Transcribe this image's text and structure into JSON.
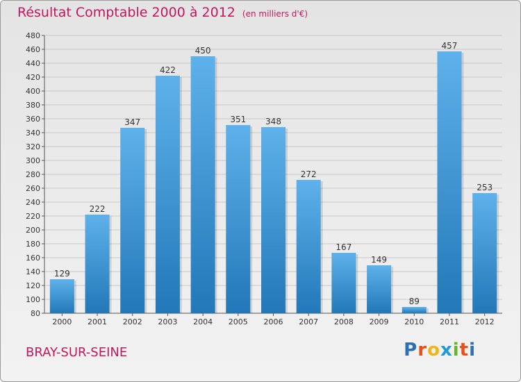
{
  "header": {
    "title": "Résultat Comptable 2000 à 2012",
    "unit": "(en milliers d'€)"
  },
  "footer": {
    "commune": "BRAY-SUR-SEINE",
    "brand": "Proxiti"
  },
  "colors": {
    "title": "#c2185b",
    "bar_top": "#5eb1ea",
    "bar_bottom": "#2278b8",
    "grid": "#c8c8c8"
  },
  "chart_data": {
    "type": "bar",
    "title": "Résultat Comptable 2000 à 2012",
    "subtitle": "(en milliers d'€)",
    "xlabel": "",
    "ylabel": "",
    "categories": [
      "2000",
      "2001",
      "2002",
      "2003",
      "2004",
      "2005",
      "2006",
      "2007",
      "2008",
      "2009",
      "2010",
      "2011",
      "2012"
    ],
    "values": [
      129,
      222,
      347,
      422,
      450,
      351,
      348,
      272,
      167,
      149,
      89,
      457,
      253
    ],
    "ylim": [
      80,
      480
    ],
    "ytick_step": 20,
    "grid": true,
    "legend": "none"
  }
}
